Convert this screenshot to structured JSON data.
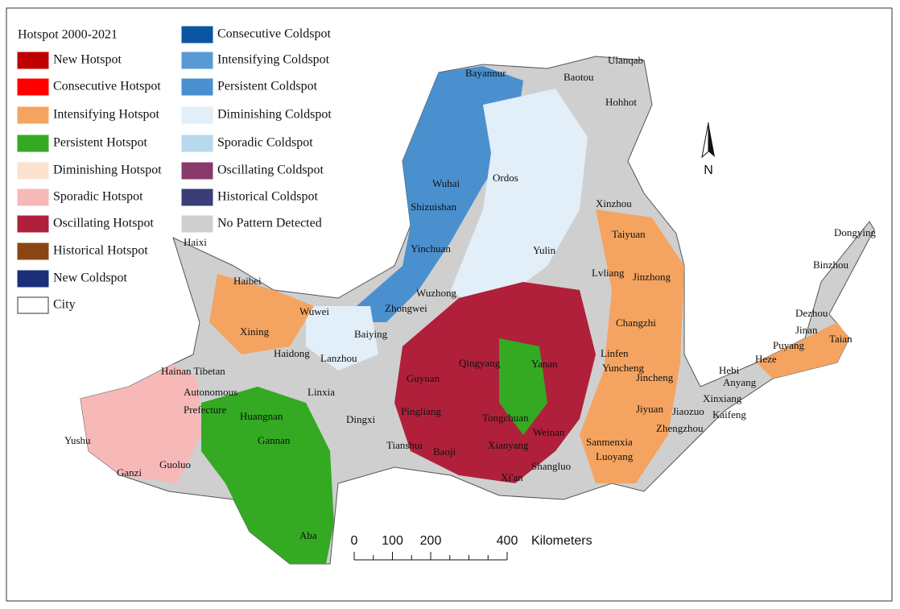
{
  "legend": {
    "title": "Hotspot 2000-2021",
    "items": [
      {
        "name": "New Hotspot",
        "color": "#c00000"
      },
      {
        "name": "Consecutive Hotspot",
        "color": "#ff0000"
      },
      {
        "name": "Intensifying Hotspot",
        "color": "#f4a460"
      },
      {
        "name": "Persistent Hotspot",
        "color": "#33aa22"
      },
      {
        "name": "Diminishing Hotspot",
        "color": "#fbe3d0"
      },
      {
        "name": "Sporadic Hotspot",
        "color": "#f7b8b8"
      },
      {
        "name": "Oscillating Hotspot",
        "color": "#b0203a"
      },
      {
        "name": "Historical Hotspot",
        "color": "#8b4513"
      },
      {
        "name": "New Coldspot",
        "color": "#1a2f7a"
      },
      {
        "name": "City",
        "color": "#ffffff"
      },
      {
        "name": "Consecutive Coldspot",
        "color": "#0a56a3"
      },
      {
        "name": "Intensifying Coldspot",
        "color": "#5a9ad4"
      },
      {
        "name": "Persistent Coldspot",
        "color": "#4a90cf"
      },
      {
        "name": "Diminishing Coldspot",
        "color": "#e2eef8"
      },
      {
        "name": "Sporadic Coldspot",
        "color": "#b8d8ee"
      },
      {
        "name": "Oscillating Coldspot",
        "color": "#8a3a6a"
      },
      {
        "name": "Historical Coldspot",
        "color": "#3a3d78"
      },
      {
        "name": "No Pattern Detected",
        "color": "#cfcfcf"
      }
    ]
  },
  "north": "N",
  "scale": {
    "ticks": [
      0,
      100,
      200,
      400
    ],
    "unit": "Kilometers"
  },
  "cities": [
    "Bayannur",
    "Ulanqab",
    "Baotou",
    "Hohhot",
    "Wuhai",
    "Ordos",
    "Shizuishan",
    "Xinzhou",
    "Yinchuan",
    "Yulin",
    "Taiyuan",
    "Haixi",
    "Dongying",
    "Binzhou",
    "Lvliang",
    "Jinzhong",
    "Haibei",
    "Wuzhong",
    "Zhongwei",
    "Wuwei",
    "Baiying",
    "Changzhi",
    "Dezhou",
    "Xining",
    "Jinan",
    "Taian",
    "Puyang",
    "Haidong",
    "Lanzhou",
    "Qingyang",
    "Yanan",
    "Linfen",
    "Heze",
    "Hainan Tibetan",
    "Autonomous",
    "Prefecture",
    "Guyuan",
    "Yuncheng",
    "Jincheng",
    "Hebi",
    "Anyang",
    "Linxia",
    "Xinxiang",
    "Yushu",
    "Jiyuan",
    "Jiaozuo",
    "Kaifeng",
    "Dingxi",
    "Pingliang",
    "Tongchuan",
    "Huangnan",
    "Zhengzhou",
    "Gannan",
    "Weinan",
    "Sanmenxia",
    "Tianshui",
    "Xianyang",
    "Baoji",
    "Luoyang",
    "Guoluo",
    "Ganzi",
    "Shangluo",
    "Xi'an",
    "Aba"
  ]
}
